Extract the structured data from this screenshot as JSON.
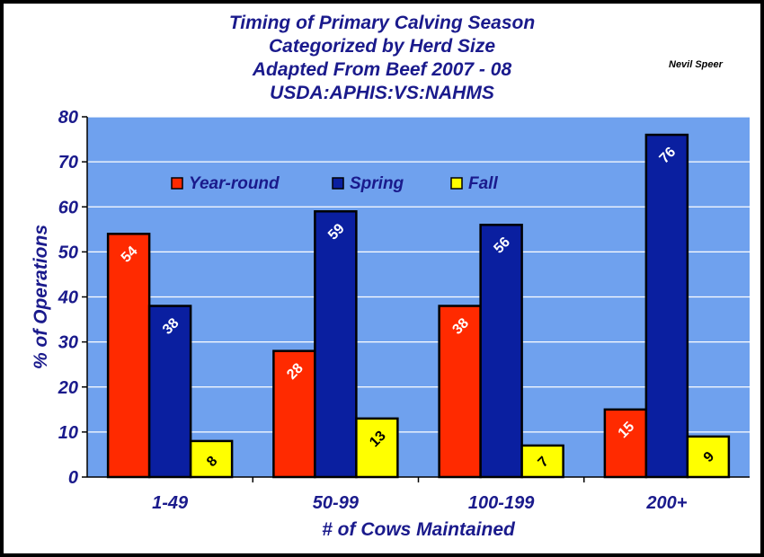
{
  "credit": "Nevil Speer",
  "chart_data": {
    "type": "bar",
    "title_lines": [
      "Timing of Primary Calving Season",
      "Categorized by Herd Size",
      "Adapted From Beef 2007 - 08",
      "USDA:APHIS:VS:NAHMS"
    ],
    "xlabel": "# of Cows Maintained",
    "ylabel": "% of Operations",
    "categories": [
      "1-49",
      "50-99",
      "100-199",
      "200+"
    ],
    "ylim": [
      0,
      80
    ],
    "yticks": [
      0,
      10,
      20,
      30,
      40,
      50,
      60,
      70,
      80
    ],
    "grid": true,
    "legend_position": "top-left",
    "series": [
      {
        "name": "Year-round",
        "color": "#ff2a00",
        "label_color": "#ffffff",
        "values": [
          54,
          28,
          38,
          15
        ]
      },
      {
        "name": "Spring",
        "color": "#0a1fa0",
        "label_color": "#ffffff",
        "values": [
          38,
          59,
          56,
          76
        ]
      },
      {
        "name": "Fall",
        "color": "#ffff00",
        "label_color": "#000000",
        "values": [
          8,
          13,
          7,
          9
        ]
      }
    ],
    "plot_background": "#6fa1ee",
    "gridline_color": "#ffffff"
  }
}
